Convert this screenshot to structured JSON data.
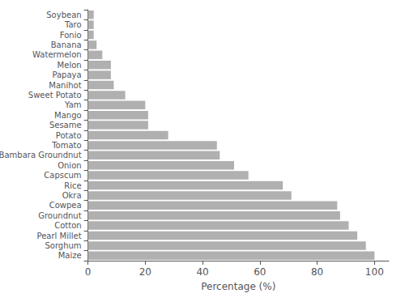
{
  "chart_data": {
    "type": "bar",
    "orientation": "horizontal",
    "categories": [
      "Maize",
      "Sorghum",
      "Pearl Millet",
      "Cotton",
      "Groundnut",
      "Cowpea",
      "Okra",
      "Rice",
      "Capscum",
      "Onion",
      "Bambara Groundnut",
      "Tomato",
      "Potato",
      "Sesame",
      "Mango",
      "Yam",
      "Sweet Potato",
      "Manihot",
      "Papaya",
      "Melon",
      "Watermelon",
      "Banana",
      "Fonio",
      "Taro",
      "Soybean"
    ],
    "values": [
      100,
      97,
      94,
      91,
      88,
      87,
      71,
      68,
      56,
      51,
      46,
      45,
      28,
      21,
      21,
      20,
      13,
      9,
      8,
      8,
      5,
      3,
      2,
      2,
      2
    ],
    "color": "#b0b0b0",
    "xlabel": "Percentage (%)",
    "xlim": [
      0,
      105
    ],
    "xticks": [
      0,
      20,
      40,
      60,
      80,
      100
    ],
    "grid": false
  }
}
